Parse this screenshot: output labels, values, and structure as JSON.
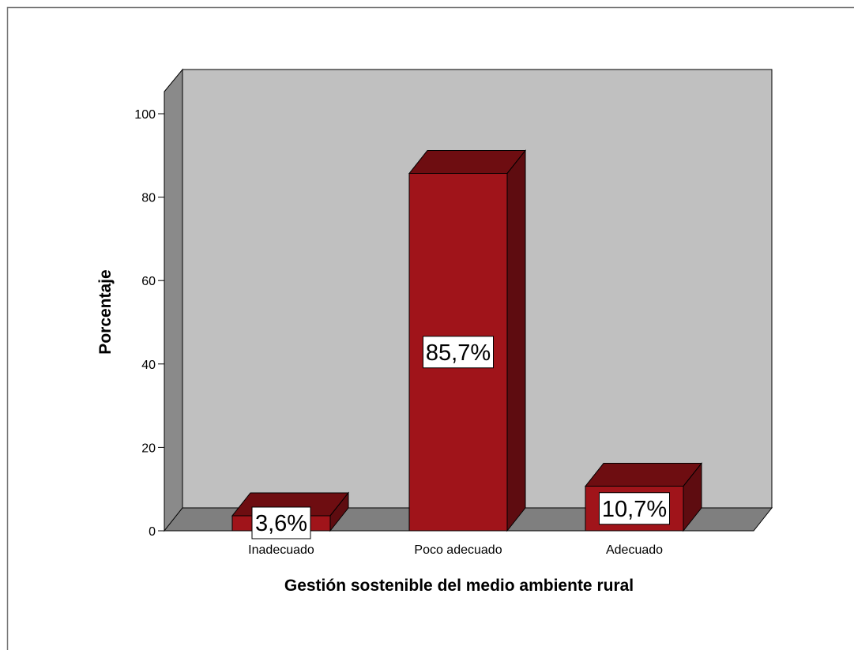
{
  "chart_data": {
    "type": "bar",
    "categories": [
      "Inadecuado",
      "Poco adecuado",
      "Adecuado"
    ],
    "values": [
      3.6,
      85.7,
      10.7
    ],
    "data_labels": [
      "3,6%",
      "85,7%",
      "10,7%"
    ],
    "title": "",
    "xlabel": "Gestión sostenible del medio ambiente rural",
    "ylabel": "Porcentaje",
    "ylim": [
      0,
      100
    ],
    "yticks": [
      "0",
      "20",
      "40",
      "60",
      "80",
      "100"
    ],
    "style": "3d",
    "grid": false,
    "colors": {
      "bar_front": "#a0141a",
      "bar_top": "#6e0d11",
      "bar_side": "#5e0c10",
      "wall": "#c0c0c0",
      "left_wall": "#8a8a8a",
      "floor": "#7f7f7f"
    }
  }
}
